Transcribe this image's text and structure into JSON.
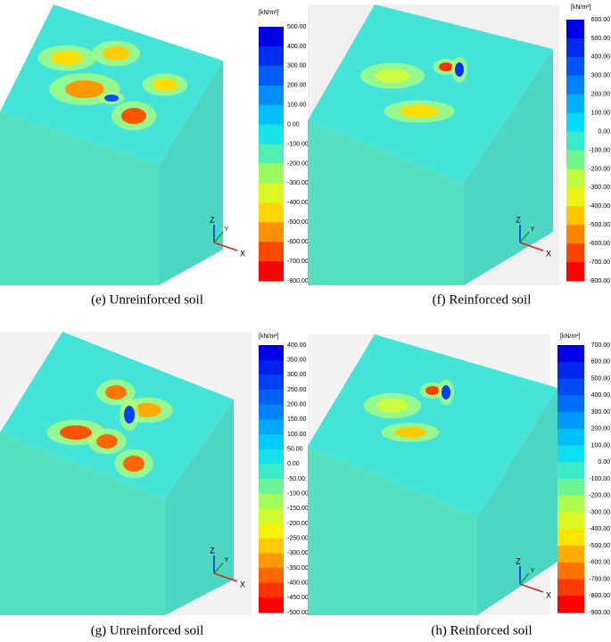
{
  "panels": [
    {
      "caption": "(e)  Unreinforced soil",
      "unit": "[kN/m²]",
      "axes": [
        "Z",
        "Y",
        "X"
      ],
      "legend": [
        "500.00",
        "400.00",
        "300.00",
        "200.00",
        "100.00",
        "0.00",
        "-100.00",
        "-200.00",
        "-300.00",
        "-400.00",
        "-500.00",
        "-600.00",
        "-700.00",
        "-800.00"
      ]
    },
    {
      "caption": "(f)  Reinforced soil",
      "unit": "[kN/m²]",
      "axes": [
        "Z",
        "Y",
        "X"
      ],
      "legend": [
        "600.00",
        "500.00",
        "400.00",
        "300.00",
        "200.00",
        "100.00",
        "0.00",
        "-100.00",
        "-200.00",
        "-300.00",
        "-400.00",
        "-500.00",
        "-600.00",
        "-700.00",
        "-800.00"
      ]
    },
    {
      "caption": "(g)  Unreinforced soil",
      "unit": "[kN/m²]",
      "axes": [
        "Z",
        "Y",
        "X"
      ],
      "legend": [
        "400.00",
        "350.00",
        "300.00",
        "250.00",
        "200.00",
        "150.00",
        "100.00",
        "50.00",
        "0.00",
        "-50.00",
        "-100.00",
        "-150.00",
        "-200.00",
        "-250.00",
        "-300.00",
        "-350.00",
        "-400.00",
        "-450.00",
        "-500.00"
      ]
    },
    {
      "caption": "(h)  Reinforced soil",
      "unit": "[kN/m²]",
      "axes": [
        "Z",
        "Y",
        "X"
      ],
      "legend": [
        "700.00",
        "600.00",
        "500.00",
        "400.00",
        "300.00",
        "200.00",
        "100.00",
        "0.00",
        "-100.00",
        "-200.00",
        "-300.00",
        "-400.00",
        "-500.00",
        "-600.00",
        "-700.00",
        "-800.00",
        "-900.00"
      ]
    }
  ]
}
